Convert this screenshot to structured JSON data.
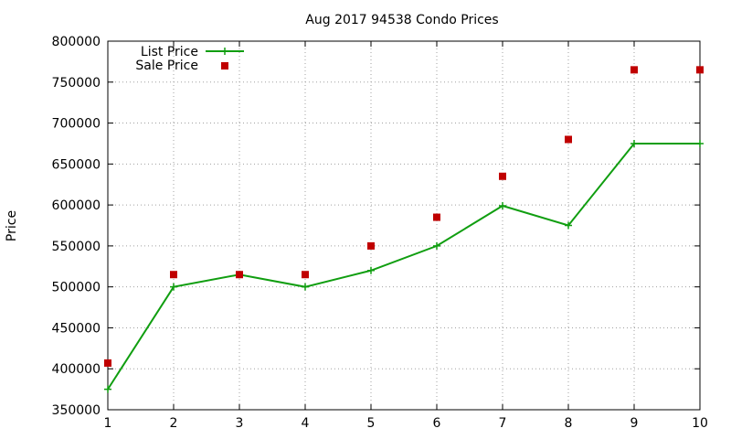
{
  "chart_data": {
    "type": "line",
    "title": "Aug 2017 94538 Condo Prices",
    "xlabel": "",
    "ylabel": "Price",
    "x": [
      1,
      2,
      3,
      4,
      5,
      6,
      7,
      8,
      9,
      10
    ],
    "xlim": [
      1,
      10
    ],
    "ylim": [
      350000,
      800000
    ],
    "y_ticks": [
      350000,
      400000,
      450000,
      500000,
      550000,
      600000,
      650000,
      700000,
      750000,
      800000
    ],
    "grid": true,
    "legend_position": "top-left",
    "series": [
      {
        "name": "List Price",
        "style": "line-with-plus-markers",
        "color": "#109e10",
        "values": [
          375000,
          500000,
          515000,
          500000,
          520000,
          550000,
          599000,
          575000,
          675000,
          675000
        ]
      },
      {
        "name": "Sale Price",
        "style": "square-points",
        "color": "#c00000",
        "values": [
          407000,
          515000,
          515000,
          515000,
          550000,
          585000,
          635000,
          680000,
          765000,
          765000
        ]
      }
    ]
  }
}
